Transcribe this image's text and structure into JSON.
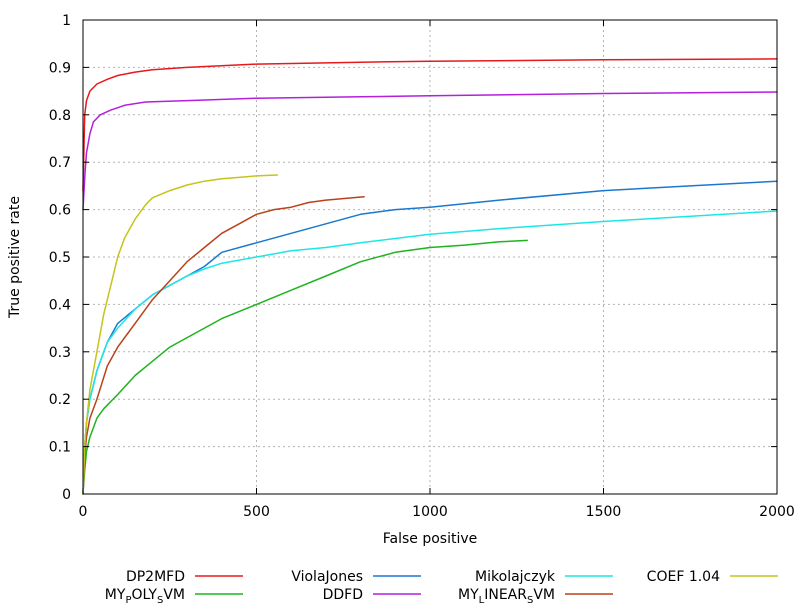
{
  "chart_data": {
    "type": "line",
    "title": "",
    "xlabel": "False positive",
    "ylabel": "True positive rate",
    "xlim": [
      0,
      2000
    ],
    "ylim": [
      0,
      1
    ],
    "x_ticks": [
      "0",
      "500",
      "1000",
      "1500",
      "2000"
    ],
    "y_ticks": [
      "0",
      "0.1",
      "0.2",
      "0.3",
      "0.4",
      "0.5",
      "0.6",
      "0.7",
      "0.8",
      "0.9",
      "1"
    ],
    "grid": true,
    "legend_position": "bottom",
    "series": [
      {
        "name": "DP2MFD",
        "legend_parts": [
          {
            "t": "DP2MFD"
          }
        ],
        "color": "#e8191c",
        "points": [
          [
            0,
            0.64
          ],
          [
            5,
            0.8
          ],
          [
            10,
            0.83
          ],
          [
            20,
            0.85
          ],
          [
            40,
            0.865
          ],
          [
            70,
            0.875
          ],
          [
            100,
            0.883
          ],
          [
            150,
            0.89
          ],
          [
            200,
            0.895
          ],
          [
            300,
            0.9
          ],
          [
            500,
            0.907
          ],
          [
            800,
            0.911
          ],
          [
            1000,
            0.913
          ],
          [
            1500,
            0.916
          ],
          [
            2000,
            0.918
          ]
        ]
      },
      {
        "name": "MYPOLYSVM",
        "legend_parts": [
          {
            "t": "MY"
          },
          {
            "t": "P",
            "sub": true
          },
          {
            "t": "OLY"
          },
          {
            "t": "S",
            "sub": true
          },
          {
            "t": "VM"
          }
        ],
        "color": "#1fb31f",
        "points": [
          [
            0,
            0
          ],
          [
            5,
            0.05
          ],
          [
            10,
            0.09
          ],
          [
            20,
            0.12
          ],
          [
            40,
            0.16
          ],
          [
            60,
            0.18
          ],
          [
            100,
            0.21
          ],
          [
            150,
            0.25
          ],
          [
            200,
            0.28
          ],
          [
            250,
            0.31
          ],
          [
            300,
            0.33
          ],
          [
            400,
            0.37
          ],
          [
            500,
            0.4
          ],
          [
            600,
            0.43
          ],
          [
            700,
            0.46
          ],
          [
            800,
            0.49
          ],
          [
            900,
            0.51
          ],
          [
            1000,
            0.52
          ],
          [
            1100,
            0.525
          ],
          [
            1200,
            0.532
          ],
          [
            1280,
            0.535
          ]
        ]
      },
      {
        "name": "ViolaJones",
        "legend_parts": [
          {
            "t": "ViolaJones"
          }
        ],
        "color": "#1b78cf",
        "points": [
          [
            0,
            0
          ],
          [
            5,
            0.1
          ],
          [
            10,
            0.15
          ],
          [
            20,
            0.2
          ],
          [
            40,
            0.26
          ],
          [
            70,
            0.32
          ],
          [
            100,
            0.36
          ],
          [
            150,
            0.39
          ],
          [
            200,
            0.42
          ],
          [
            250,
            0.44
          ],
          [
            300,
            0.46
          ],
          [
            350,
            0.48
          ],
          [
            400,
            0.51
          ],
          [
            500,
            0.53
          ],
          [
            600,
            0.55
          ],
          [
            700,
            0.57
          ],
          [
            800,
            0.59
          ],
          [
            900,
            0.6
          ],
          [
            1000,
            0.605
          ],
          [
            1200,
            0.62
          ],
          [
            1500,
            0.64
          ],
          [
            1750,
            0.65
          ],
          [
            2000,
            0.66
          ]
        ]
      },
      {
        "name": "DDFD",
        "legend_parts": [
          {
            "t": "DDFD"
          }
        ],
        "color": "#b31fdc",
        "points": [
          [
            0,
            0.6
          ],
          [
            3,
            0.64
          ],
          [
            6,
            0.68
          ],
          [
            10,
            0.72
          ],
          [
            20,
            0.76
          ],
          [
            30,
            0.785
          ],
          [
            50,
            0.8
          ],
          [
            80,
            0.81
          ],
          [
            120,
            0.82
          ],
          [
            180,
            0.827
          ],
          [
            300,
            0.83
          ],
          [
            500,
            0.835
          ],
          [
            800,
            0.838
          ],
          [
            1000,
            0.84
          ],
          [
            1500,
            0.845
          ],
          [
            2000,
            0.848
          ]
        ]
      },
      {
        "name": "Mikolajczyk",
        "legend_parts": [
          {
            "t": "Mikolajczyk"
          }
        ],
        "color": "#1ee6e6",
        "points": [
          [
            0,
            0
          ],
          [
            5,
            0.1
          ],
          [
            10,
            0.15
          ],
          [
            20,
            0.2
          ],
          [
            40,
            0.26
          ],
          [
            70,
            0.32
          ],
          [
            100,
            0.35
          ],
          [
            150,
            0.39
          ],
          [
            200,
            0.42
          ],
          [
            250,
            0.44
          ],
          [
            300,
            0.46
          ],
          [
            350,
            0.475
          ],
          [
            400,
            0.487
          ],
          [
            500,
            0.5
          ],
          [
            600,
            0.513
          ],
          [
            700,
            0.52
          ],
          [
            800,
            0.53
          ],
          [
            1000,
            0.548
          ],
          [
            1200,
            0.56
          ],
          [
            1500,
            0.575
          ],
          [
            2000,
            0.597
          ]
        ]
      },
      {
        "name": "MYLINEARSVM",
        "legend_parts": [
          {
            "t": "MY"
          },
          {
            "t": "L",
            "sub": true
          },
          {
            "t": "INEAR"
          },
          {
            "t": "S",
            "sub": true
          },
          {
            "t": "VM"
          }
        ],
        "color": "#b9421a",
        "points": [
          [
            0,
            0
          ],
          [
            5,
            0.08
          ],
          [
            10,
            0.12
          ],
          [
            20,
            0.16
          ],
          [
            40,
            0.2
          ],
          [
            70,
            0.27
          ],
          [
            100,
            0.31
          ],
          [
            150,
            0.36
          ],
          [
            200,
            0.41
          ],
          [
            250,
            0.45
          ],
          [
            300,
            0.49
          ],
          [
            350,
            0.52
          ],
          [
            400,
            0.55
          ],
          [
            450,
            0.57
          ],
          [
            500,
            0.59
          ],
          [
            550,
            0.6
          ],
          [
            600,
            0.605
          ],
          [
            650,
            0.615
          ],
          [
            700,
            0.62
          ],
          [
            810,
            0.627
          ]
        ]
      },
      {
        "name": "COEF 1.04",
        "legend_parts": [
          {
            "t": "COEF 1.04"
          }
        ],
        "color": "#c4c41b",
        "points": [
          [
            0,
            0
          ],
          [
            5,
            0.1
          ],
          [
            10,
            0.15
          ],
          [
            20,
            0.22
          ],
          [
            40,
            0.3
          ],
          [
            60,
            0.38
          ],
          [
            80,
            0.44
          ],
          [
            100,
            0.5
          ],
          [
            120,
            0.54
          ],
          [
            150,
            0.58
          ],
          [
            180,
            0.61
          ],
          [
            200,
            0.625
          ],
          [
            250,
            0.64
          ],
          [
            300,
            0.652
          ],
          [
            350,
            0.66
          ],
          [
            400,
            0.665
          ],
          [
            450,
            0.668
          ],
          [
            500,
            0.671
          ],
          [
            560,
            0.673
          ]
        ]
      }
    ]
  }
}
